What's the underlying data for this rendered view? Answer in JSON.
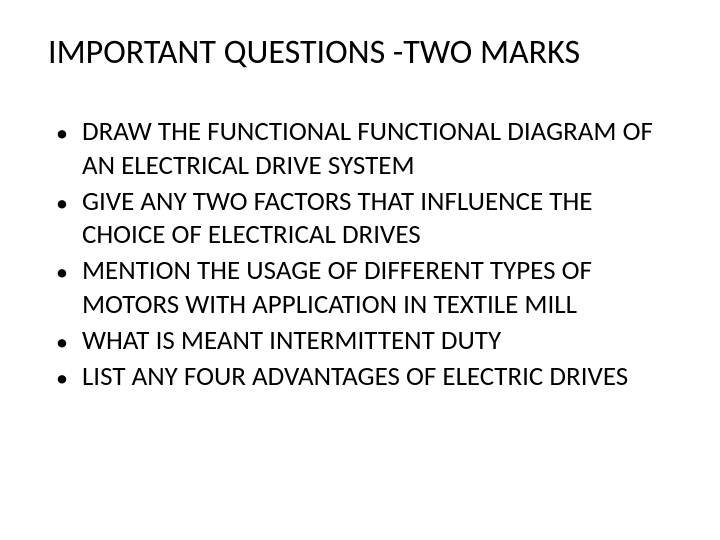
{
  "slide": {
    "title": "IMPORTANT QUESTIONS -TWO MARKS",
    "bullets": [
      "DRAW THE FUNCTIONAL FUNCTIONAL DIAGRAM OF AN ELECTRICAL DRIVE SYSTEM",
      "GIVE ANY TWO FACTORS THAT INFLUENCE THE CHOICE OF ELECTRICAL DRIVES",
      "MENTION THE USAGE OF DIFFERENT TYPES OF MOTORS WITH APPLICATION IN TEXTILE MILL",
      "WHAT IS MEANT INTERMITTENT DUTY",
      "LIST ANY FOUR ADVANTAGES OF ELECTRIC DRIVES"
    ]
  },
  "styling": {
    "background_color": "#ffffff",
    "text_color": "#000000",
    "title_fontsize": 34,
    "body_fontsize": 27,
    "font_family": "Calibri",
    "bullet_marker": "•"
  }
}
